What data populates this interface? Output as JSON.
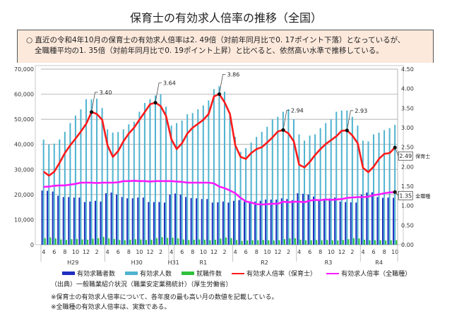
{
  "title": "保育士の有効求人倍率の推移（全国）",
  "summary": {
    "line1": "○ 直近の令和4年10月の保育士の有効求人倍率は2. 49倍（対前年同月比で0. 17ポイント下落）となっているが、",
    "line2": "全職種平均の1. 35倍（対前年同月比で0. 19ポイント上昇）と比べると、依然高い水準で推移している。"
  },
  "source": "（出典）一般職業紹介状況（職業安定業務統計）（厚生労働省）",
  "notes": [
    "※保育士の有効求人倍率について、各年度の最も高い月の数値を記載している。",
    "※全職種の有効求人倍率は、実数である。"
  ],
  "chart_data": {
    "type": "bar+line",
    "title": "保育士の有効求人倍率の推移（全国）",
    "left_axis": {
      "ylim": [
        0,
        70000
      ],
      "ticks": [
        "0",
        "10,000",
        "20,000",
        "30,000",
        "40,000",
        "50,000",
        "60,000",
        "70,000"
      ]
    },
    "right_axis": {
      "ylim": [
        0,
        4.5
      ],
      "ticks": [
        "0.00",
        "0.50",
        "1.00",
        "1.50",
        "2.00",
        "2.50",
        "3.00",
        "3.50",
        "4.00",
        "4.50"
      ]
    },
    "grid": true,
    "legend_position": "bottom",
    "month_ticks": [
      "4",
      "6",
      "8",
      "10",
      "12",
      "2"
    ],
    "groups": [
      {
        "label": "H29",
        "months": 12
      },
      {
        "label": "H30",
        "months": 12
      },
      {
        "label": "H31",
        "months": 1
      },
      {
        "label": "R1",
        "months": 11
      },
      {
        "label": "R2",
        "months": 12
      },
      {
        "label": "R3",
        "months": 12
      },
      {
        "label": "R4",
        "months": 7
      }
    ],
    "colors": {
      "seekers": "#1f2fc0",
      "offers": "#4fb3cf",
      "placements": "#2fc13a",
      "ratio_hoiku": "#ff1a1a",
      "ratio_all": "#ff1aff"
    },
    "series": [
      {
        "name": "有効求職者数",
        "type": "bar",
        "axis": "left",
        "values": [
          21600,
          21500,
          21200,
          19500,
          19000,
          19000,
          18800,
          18800,
          17000,
          17200,
          17500,
          17200,
          20500,
          20800,
          20000,
          19000,
          18500,
          18500,
          18800,
          18800,
          17000,
          17000,
          17000,
          16800,
          20000,
          20400,
          20000,
          19000,
          18600,
          18500,
          18200,
          18200,
          16800,
          16900,
          17200,
          16800,
          17500,
          17800,
          17200,
          17000,
          17200,
          17500,
          18000,
          18000,
          18000,
          18500,
          18200,
          17800,
          20500,
          20300,
          20000,
          19200,
          18000,
          18200,
          18400,
          18800,
          17200,
          17000,
          16900,
          16800,
          20000,
          20800,
          20900,
          19000,
          18700,
          18800,
          18700
        ]
      },
      {
        "name": "有効求人数",
        "type": "bar",
        "axis": "left",
        "values": [
          41900,
          40000,
          40300,
          42000,
          45000,
          48500,
          51500,
          54000,
          58000,
          58000,
          58200,
          54500,
          46000,
          44700,
          44900,
          46000,
          48000,
          49000,
          53000,
          56500,
          58000,
          59500,
          60000,
          55000,
          47500,
          48500,
          49500,
          52000,
          52500,
          54000,
          55500,
          57500,
          62000,
          63200,
          61000,
          52000,
          43000,
          37000,
          38500,
          40700,
          43000,
          45000,
          47000,
          50000,
          51000,
          53000,
          54000,
          50000,
          44000,
          41500,
          43500,
          44000,
          46500,
          48500,
          50000,
          53000,
          53500,
          53500,
          51000,
          47500,
          41500,
          41200,
          44000,
          44700,
          45700,
          46500,
          47800
        ]
      },
      {
        "name": "就職件数",
        "type": "bar",
        "axis": "left",
        "values": [
          2600,
          2900,
          2500,
          2100,
          1900,
          2200,
          2300,
          2100,
          2000,
          2400,
          2600,
          3100,
          2500,
          2300,
          1900,
          1800,
          2000,
          2200,
          2100,
          1900,
          2000,
          2600,
          3000,
          2700,
          2800,
          2500,
          2100,
          1900,
          2000,
          2100,
          2000,
          1800,
          2000,
          2400,
          2900,
          2600,
          1900,
          1500,
          1700,
          1800,
          1800,
          1900,
          1800,
          1700,
          1800,
          2200,
          2500,
          2600,
          2000,
          1800,
          1800,
          1900,
          1800,
          1900,
          1800,
          1700,
          1900,
          2200,
          2600,
          2500,
          2000,
          1800,
          1800,
          1800,
          1700,
          1800,
          1800
        ]
      },
      {
        "name": "有効求人倍率（保育士）",
        "type": "line",
        "axis": "right",
        "values": [
          1.87,
          1.77,
          1.87,
          2.1,
          2.35,
          2.55,
          2.72,
          2.9,
          3.1,
          3.4,
          3.35,
          3.2,
          2.55,
          2.25,
          2.4,
          2.65,
          2.85,
          3.0,
          3.2,
          3.4,
          3.6,
          3.64,
          3.55,
          3.3,
          2.7,
          2.45,
          2.6,
          2.85,
          3.0,
          3.1,
          3.2,
          3.35,
          3.8,
          3.86,
          3.65,
          3.35,
          2.55,
          2.25,
          2.2,
          2.35,
          2.45,
          2.5,
          2.62,
          2.75,
          2.9,
          2.94,
          2.85,
          2.65,
          2.05,
          1.98,
          2.12,
          2.3,
          2.45,
          2.58,
          2.68,
          2.78,
          2.92,
          2.93,
          2.8,
          2.6,
          1.97,
          1.86,
          2.0,
          2.2,
          2.33,
          2.35,
          2.49
        ]
      },
      {
        "name": "有効求人倍率（全職種）",
        "type": "line",
        "axis": "right",
        "values": [
          1.48,
          1.49,
          1.51,
          1.52,
          1.52,
          1.54,
          1.56,
          1.59,
          1.59,
          1.59,
          1.58,
          1.59,
          1.59,
          1.59,
          1.6,
          1.63,
          1.63,
          1.64,
          1.63,
          1.63,
          1.62,
          1.63,
          1.63,
          1.63,
          1.63,
          1.62,
          1.61,
          1.59,
          1.59,
          1.59,
          1.59,
          1.59,
          1.57,
          1.49,
          1.45,
          1.39,
          1.32,
          1.2,
          1.11,
          1.08,
          1.04,
          1.03,
          1.04,
          1.05,
          1.05,
          1.1,
          1.09,
          1.1,
          1.1,
          1.09,
          1.13,
          1.15,
          1.14,
          1.16,
          1.15,
          1.16,
          1.17,
          1.2,
          1.21,
          1.22,
          1.22,
          1.23,
          1.27,
          1.29,
          1.32,
          1.34,
          1.35
        ]
      }
    ],
    "annotations": [
      {
        "index": 9,
        "label": "3.40"
      },
      {
        "index": 21,
        "label": "3.64"
      },
      {
        "index": 33,
        "label": "3.86"
      },
      {
        "index": 45,
        "label": "2.94"
      },
      {
        "index": 57,
        "label": "2.93"
      }
    ],
    "end_labels": [
      {
        "series": 3,
        "value": "2.49",
        "tag": "保育士"
      },
      {
        "series": 4,
        "value": "1.35",
        "tag": "全職種"
      }
    ]
  }
}
